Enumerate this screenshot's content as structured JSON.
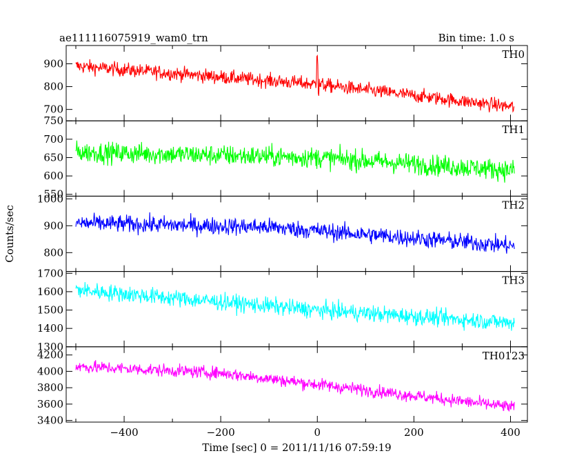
{
  "chart_data": {
    "type": "line",
    "title": "ae111116075919_wam0_trn",
    "subtitle": "Bin time: 1.0 s",
    "xlabel": "Time [sec] 0 = 2011/11/16 07:59:19",
    "ylabel": "Counts/sec",
    "xlim": [
      -520,
      435
    ],
    "x_ticks": [
      -400,
      -200,
      0,
      200,
      400
    ],
    "x_tick_labels": [
      "−400",
      "−200",
      "0",
      "200",
      "400"
    ],
    "x_range": [
      -500,
      408
    ],
    "grid": false,
    "panels": [
      {
        "name": "TH0",
        "color": "#ff0000",
        "ylim": [
          650,
          980
        ],
        "yticks": [
          700,
          800,
          900
        ],
        "ytick_labels": [
          "700",
          "800",
          "900"
        ],
        "trend": [
          [
            -500,
            890
          ],
          [
            -250,
            850
          ],
          [
            0,
            810
          ],
          [
            408,
            710
          ]
        ],
        "noise": 30,
        "spike": {
          "x": 0,
          "y": 940
        }
      },
      {
        "name": "TH1",
        "color": "#00ff00",
        "ylim": [
          545,
          750
        ],
        "yticks": [
          550,
          600,
          650,
          700,
          750
        ],
        "ytick_labels": [
          "550",
          "600",
          "650",
          "700",
          "750"
        ],
        "trend": [
          [
            -500,
            665
          ],
          [
            0,
            650
          ],
          [
            408,
            615
          ]
        ],
        "noise": 28
      },
      {
        "name": "TH2",
        "color": "#0000ff",
        "ylim": [
          730,
          1010
        ],
        "yticks": [
          800,
          900,
          1000
        ],
        "ytick_labels": [
          "800",
          "900",
          "1000"
        ],
        "trend": [
          [
            -500,
            910
          ],
          [
            -100,
            895
          ],
          [
            408,
            825
          ]
        ],
        "noise": 32
      },
      {
        "name": "TH3",
        "color": "#00ffff",
        "ylim": [
          1300,
          1710
        ],
        "yticks": [
          1300,
          1400,
          1500,
          1600,
          1700
        ],
        "ytick_labels": [
          "1300",
          "1400",
          "1500",
          "1600",
          "1700"
        ],
        "trend": [
          [
            -500,
            1610
          ],
          [
            0,
            1500
          ],
          [
            408,
            1430
          ]
        ],
        "noise": 45
      },
      {
        "name": "TH0123",
        "color": "#ff00ff",
        "ylim": [
          3380,
          4300
        ],
        "yticks": [
          3400,
          3600,
          3800,
          4000,
          4200
        ],
        "ytick_labels": [
          "3400",
          "3600",
          "3800",
          "4000",
          "4200"
        ],
        "trend": [
          [
            -500,
            4060
          ],
          [
            -200,
            3980
          ],
          [
            0,
            3840
          ],
          [
            408,
            3560
          ]
        ],
        "noise": 75
      }
    ]
  }
}
